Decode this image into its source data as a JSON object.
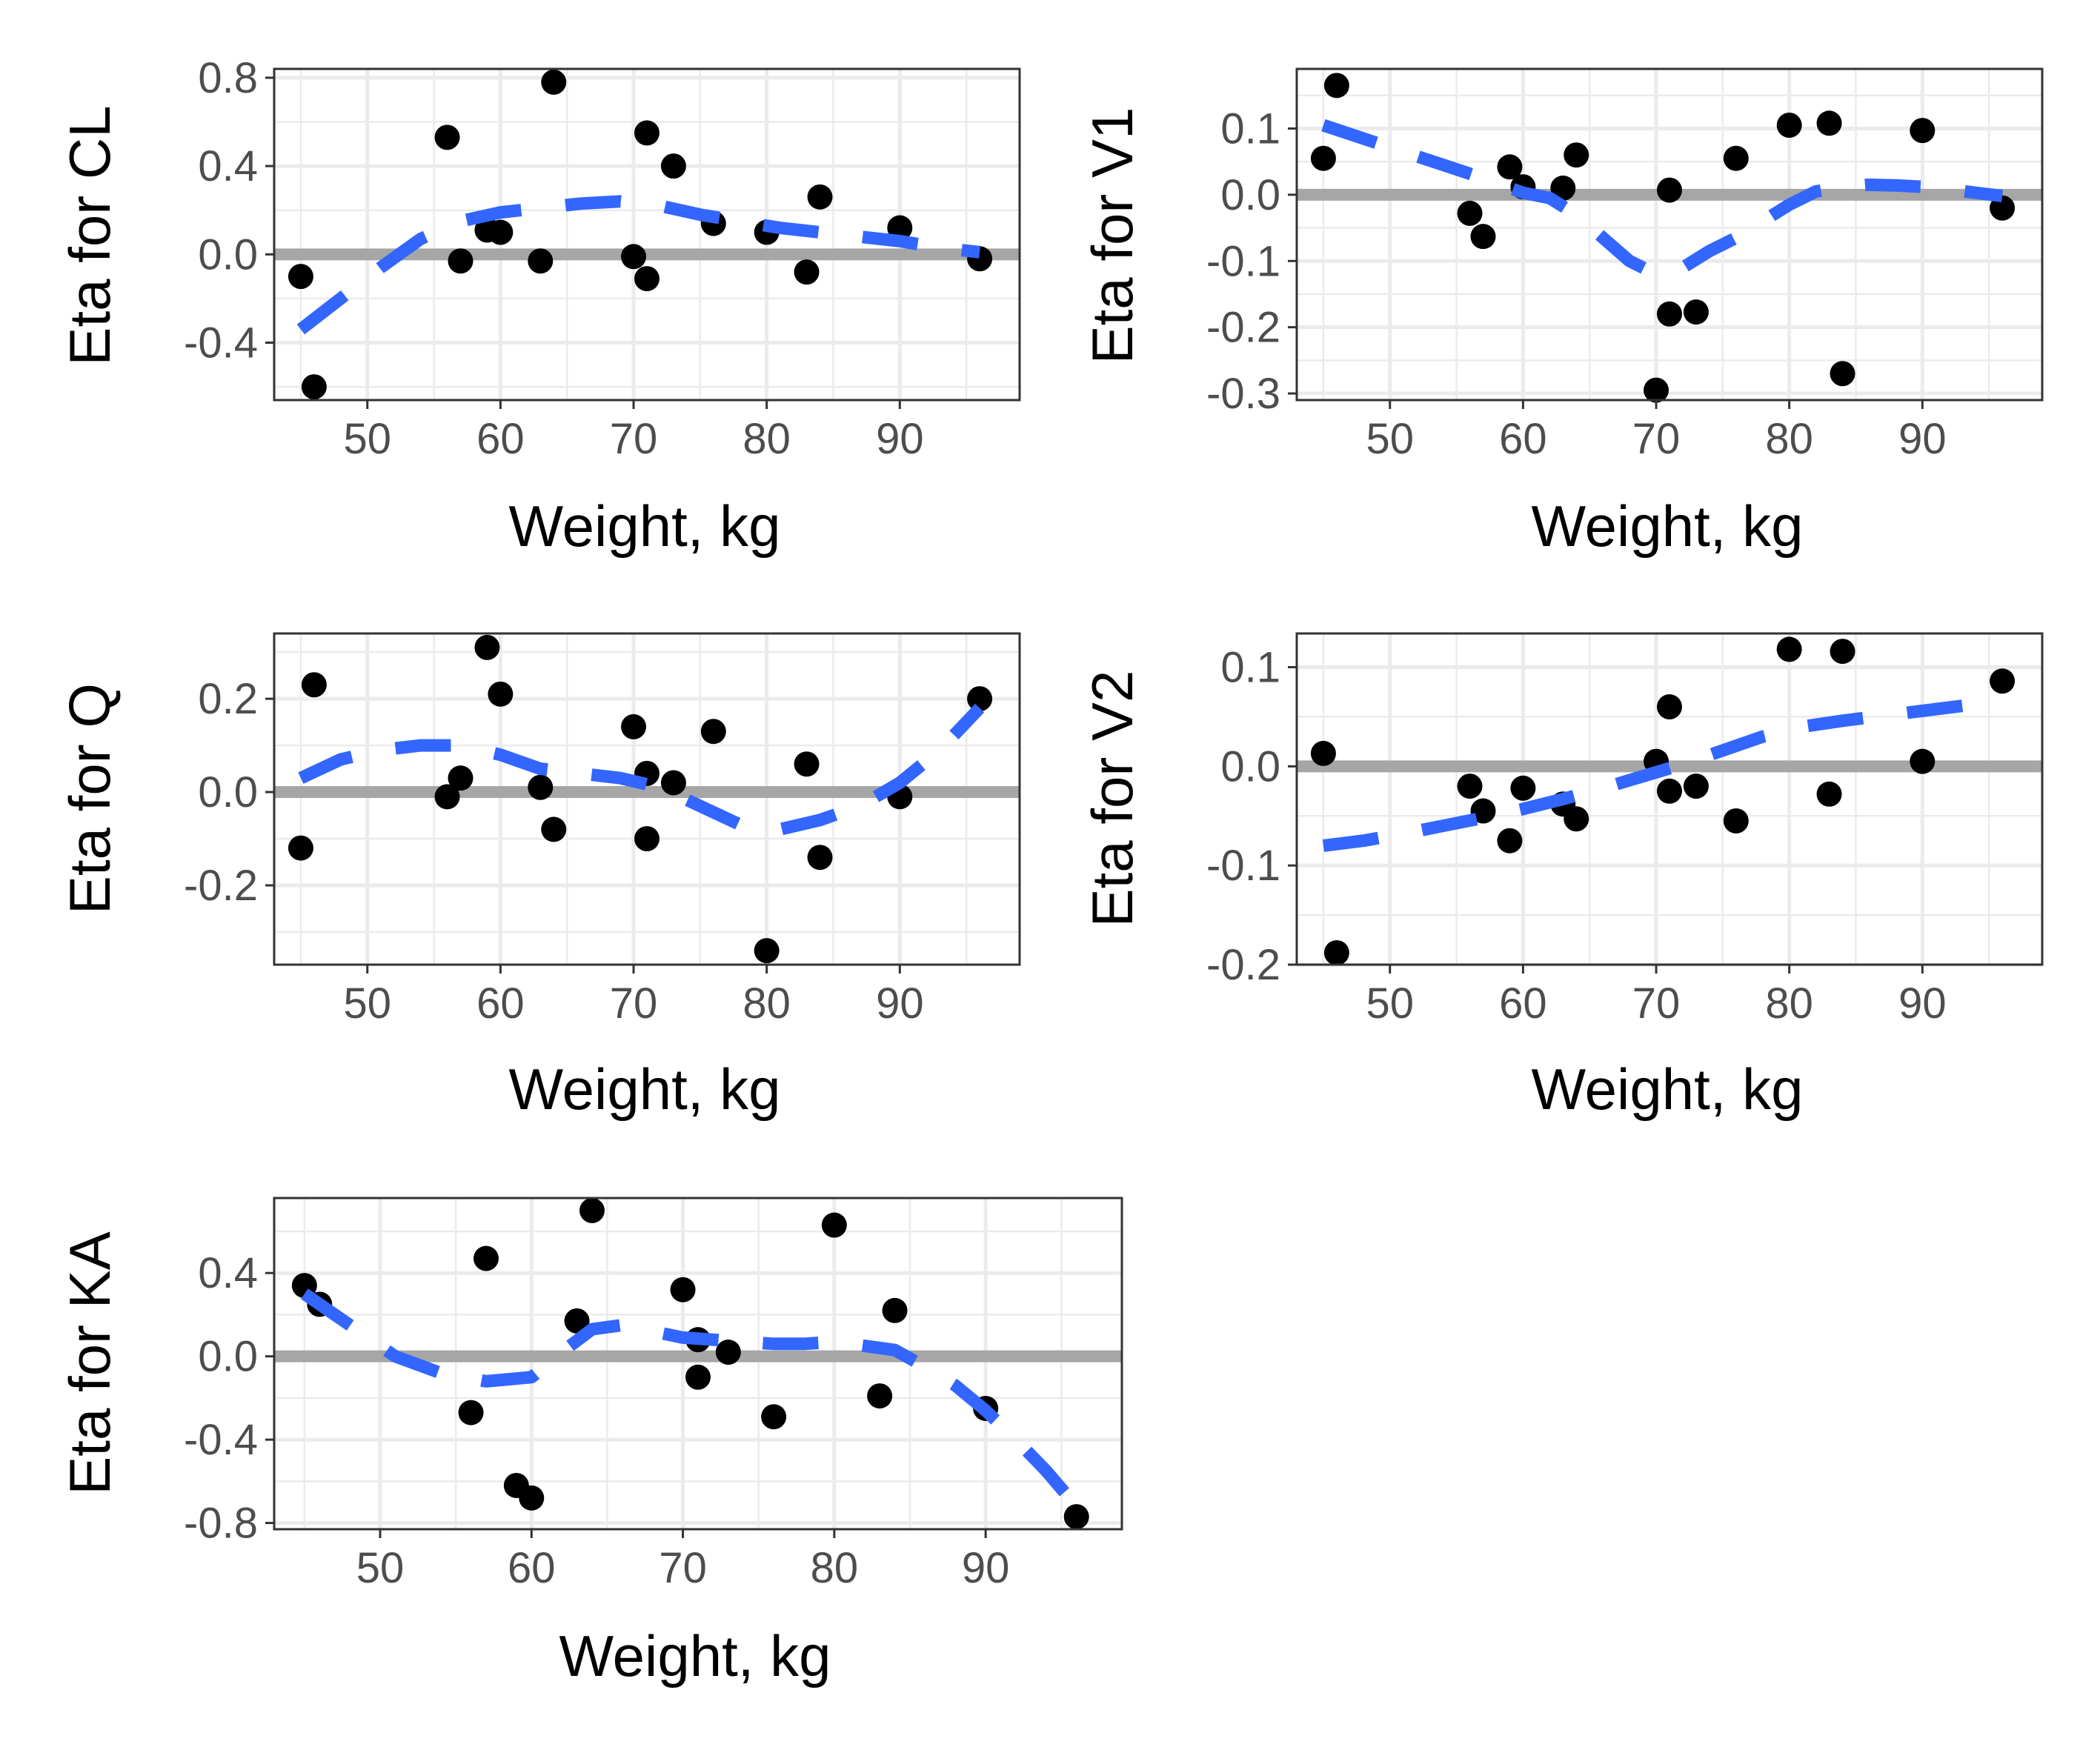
{
  "chart_data": [
    {
      "type": "scatter",
      "xlabel": "Weight, kg",
      "ylabel": "Eta for CL",
      "xlim": [
        43,
        99
      ],
      "ylim": [
        -0.66,
        0.84
      ],
      "xticks": [
        50,
        60,
        70,
        80,
        90
      ],
      "yticks": [
        -0.4,
        0.0,
        0.4,
        0.8
      ],
      "ytick_labels": [
        "-0.4",
        "0.0",
        "0.4",
        "0.8"
      ],
      "grid": true,
      "reference_line_y": 0,
      "colors": {
        "points": "#000000",
        "smooth": "#3366ff",
        "reference": "#a6a6a6"
      },
      "points": {
        "x": [
          45,
          46,
          56,
          57,
          59,
          60,
          63,
          64,
          70,
          71,
          71,
          73,
          76,
          80,
          83,
          84,
          90,
          96
        ],
        "y": [
          -0.1,
          -0.6,
          0.53,
          -0.03,
          0.11,
          0.1,
          -0.03,
          0.78,
          -0.01,
          0.55,
          -0.11,
          0.4,
          0.14,
          0.1,
          -0.08,
          0.26,
          0.12,
          -0.02
        ]
      },
      "smooth": {
        "x": [
          45,
          48,
          51,
          54,
          57,
          60,
          63,
          66,
          69,
          72,
          75,
          78,
          81,
          84,
          87,
          90,
          93,
          96
        ],
        "y": [
          -0.34,
          -0.2,
          -0.06,
          0.07,
          0.15,
          0.19,
          0.21,
          0.23,
          0.24,
          0.22,
          0.18,
          0.15,
          0.12,
          0.1,
          0.08,
          0.06,
          0.03,
          0.01
        ]
      }
    },
    {
      "type": "scatter",
      "xlabel": "Weight, kg",
      "ylabel": "Eta for V1",
      "xlim": [
        43,
        99
      ],
      "ylim": [
        -0.31,
        0.19
      ],
      "xticks": [
        50,
        60,
        70,
        80,
        90
      ],
      "yticks": [
        -0.3,
        -0.2,
        -0.1,
        0.0,
        0.1
      ],
      "ytick_labels": [
        "-0.3",
        "-0.2",
        "-0.1",
        "0.0",
        "0.1"
      ],
      "grid": true,
      "reference_line_y": 0,
      "colors": {
        "points": "#000000",
        "smooth": "#3366ff",
        "reference": "#a6a6a6"
      },
      "points": {
        "x": [
          45,
          46,
          56,
          57,
          59,
          60,
          63,
          64,
          70,
          71,
          71,
          73,
          76,
          80,
          83,
          84,
          90,
          96
        ],
        "y": [
          0.055,
          0.165,
          -0.028,
          -0.063,
          0.042,
          0.012,
          0.01,
          0.06,
          -0.295,
          0.007,
          -0.18,
          -0.177,
          0.055,
          0.105,
          0.108,
          -0.27,
          0.097,
          -0.02
        ]
      },
      "smooth": {
        "x": [
          45,
          48,
          51,
          54,
          57,
          60,
          62,
          64,
          66,
          68,
          70,
          72,
          74,
          76,
          78,
          80,
          82,
          84,
          86,
          88,
          90,
          92,
          94,
          96
        ],
        "y": [
          0.105,
          0.085,
          0.065,
          0.045,
          0.025,
          0.003,
          -0.005,
          -0.03,
          -0.065,
          -0.1,
          -0.12,
          -0.11,
          -0.085,
          -0.065,
          -0.04,
          -0.015,
          0.005,
          0.012,
          0.015,
          0.014,
          0.012,
          0.008,
          0.003,
          -0.002
        ]
      }
    },
    {
      "type": "scatter",
      "xlabel": "Weight, kg",
      "ylabel": "Eta for Q",
      "xlim": [
        43,
        99
      ],
      "ylim": [
        -0.37,
        0.34
      ],
      "xticks": [
        50,
        60,
        70,
        80,
        90
      ],
      "yticks": [
        -0.2,
        0.0,
        0.2
      ],
      "ytick_labels": [
        "-0.2",
        "0.0",
        "0.2"
      ],
      "grid": true,
      "reference_line_y": 0,
      "colors": {
        "points": "#000000",
        "smooth": "#3366ff",
        "reference": "#a6a6a6"
      },
      "points": {
        "x": [
          45,
          46,
          56,
          57,
          59,
          60,
          63,
          64,
          70,
          71,
          71,
          73,
          76,
          80,
          83,
          84,
          90,
          96
        ],
        "y": [
          -0.12,
          0.23,
          -0.01,
          0.03,
          0.31,
          0.21,
          0.01,
          -0.08,
          0.14,
          0.04,
          -0.1,
          0.02,
          0.13,
          -0.34,
          0.06,
          -0.14,
          -0.01,
          0.2
        ]
      },
      "smooth": {
        "x": [
          45,
          48,
          51,
          54,
          57,
          60,
          63,
          66,
          69,
          72,
          75,
          78,
          81,
          84,
          87,
          90,
          93,
          96
        ],
        "y": [
          0.03,
          0.07,
          0.09,
          0.1,
          0.1,
          0.08,
          0.05,
          0.04,
          0.03,
          0.01,
          -0.03,
          -0.07,
          -0.08,
          -0.06,
          -0.03,
          0.02,
          0.09,
          0.18
        ]
      }
    },
    {
      "type": "scatter",
      "xlabel": "Weight, kg",
      "ylabel": "Eta for V2",
      "xlim": [
        43,
        99
      ],
      "ylim": [
        -0.2,
        0.134
      ],
      "xticks": [
        50,
        60,
        70,
        80,
        90
      ],
      "yticks": [
        -0.2,
        -0.1,
        0.0,
        0.1
      ],
      "ytick_labels": [
        "-0.2",
        "-0.1",
        "0.0",
        "0.1"
      ],
      "grid": true,
      "reference_line_y": 0,
      "colors": {
        "points": "#000000",
        "smooth": "#3366ff",
        "reference": "#a6a6a6"
      },
      "points": {
        "x": [
          45,
          46,
          56,
          57,
          59,
          60,
          63,
          64,
          70,
          71,
          71,
          73,
          76,
          80,
          83,
          84,
          90,
          96
        ],
        "y": [
          0.013,
          -0.188,
          -0.02,
          -0.045,
          -0.075,
          -0.022,
          -0.038,
          -0.053,
          0.005,
          0.06,
          -0.025,
          -0.02,
          -0.055,
          0.118,
          -0.028,
          0.116,
          0.005,
          0.086
        ]
      },
      "smooth": {
        "x": [
          45,
          48,
          51,
          54,
          57,
          60,
          63,
          66,
          69,
          72,
          75,
          78,
          81,
          84,
          87,
          90,
          93
        ],
        "y": [
          -0.08,
          -0.075,
          -0.068,
          -0.06,
          -0.052,
          -0.043,
          -0.033,
          -0.022,
          -0.01,
          0.002,
          0.016,
          0.03,
          0.04,
          0.046,
          0.051,
          0.056,
          0.061
        ]
      }
    },
    {
      "type": "scatter",
      "xlabel": "Weight, kg",
      "ylabel": "Eta for KA",
      "xlim": [
        43,
        99
      ],
      "ylim": [
        -0.83,
        0.76
      ],
      "xticks": [
        50,
        60,
        70,
        80,
        90
      ],
      "yticks": [
        -0.8,
        -0.4,
        0.0,
        0.4
      ],
      "ytick_labels": [
        "-0.8",
        "-0.4",
        "0.0",
        "0.4"
      ],
      "grid": true,
      "reference_line_y": 0,
      "colors": {
        "points": "#000000",
        "smooth": "#3366ff",
        "reference": "#a6a6a6"
      },
      "points": {
        "x": [
          45,
          46,
          56,
          57,
          59,
          60,
          63,
          64,
          70,
          71,
          71,
          73,
          76,
          80,
          83,
          84,
          90,
          96
        ],
        "y": [
          0.34,
          0.25,
          -0.27,
          0.47,
          -0.62,
          -0.68,
          0.17,
          0.7,
          0.32,
          0.08,
          -0.1,
          0.02,
          -0.29,
          0.63,
          -0.19,
          0.22,
          -0.25,
          -0.77
        ]
      },
      "smooth": {
        "x": [
          45,
          48,
          51,
          54,
          57,
          60,
          62,
          64,
          66,
          68,
          70,
          72,
          74,
          76,
          78,
          80,
          82,
          84,
          86,
          88,
          90,
          92,
          94,
          96
        ],
        "y": [
          0.3,
          0.15,
          0.0,
          -0.08,
          -0.12,
          -0.1,
          0.02,
          0.13,
          0.15,
          0.12,
          0.09,
          0.08,
          0.07,
          0.06,
          0.06,
          0.07,
          0.05,
          0.03,
          -0.05,
          -0.14,
          -0.26,
          -0.4,
          -0.55,
          -0.72
        ]
      }
    }
  ]
}
